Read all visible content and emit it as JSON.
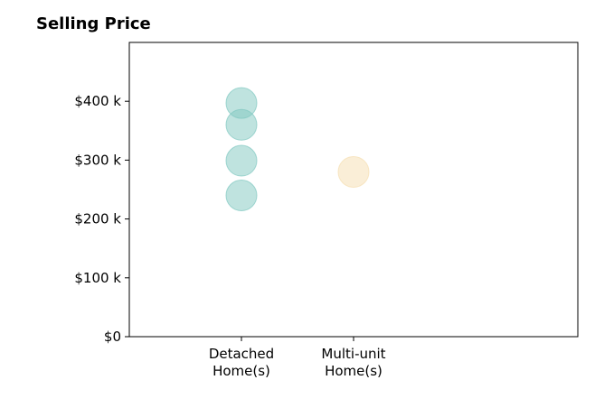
{
  "chart_data": {
    "type": "scatter",
    "title": "Selling Price",
    "xlabel": "",
    "ylabel": "",
    "categories": [
      "Detached\nHome(s)",
      "Multi-unit\nHome(s)"
    ],
    "x_tick_labels": [
      [
        "Detached",
        "Home(s)"
      ],
      [
        "Multi-unit",
        "Home(s)"
      ]
    ],
    "ylim": [
      0,
      500000
    ],
    "y_ticks": [
      0,
      100000,
      200000,
      300000,
      400000
    ],
    "y_tick_labels": [
      "$0",
      "$100 k",
      "$200 k",
      "$300 k",
      "$400 k"
    ],
    "series": [
      {
        "category": "Detached\nHome(s)",
        "color": "#7fc8c0",
        "values": [
          397000,
          360000,
          299000,
          240000
        ]
      },
      {
        "category": "Multi-unit\nHome(s)",
        "color": "#f5deb0",
        "values": [
          280000
        ]
      }
    ],
    "grid": false,
    "legend": "none"
  }
}
